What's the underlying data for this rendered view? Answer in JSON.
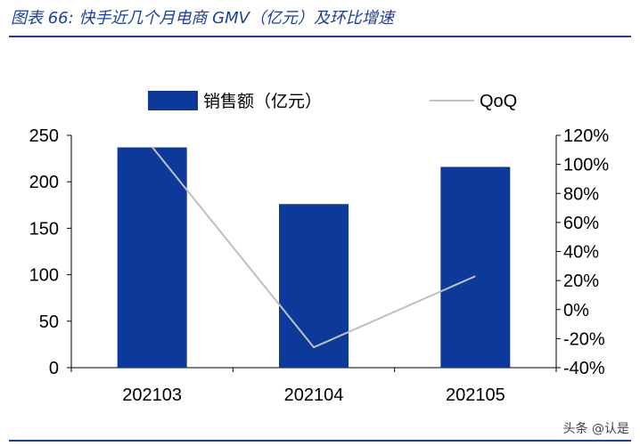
{
  "figure": {
    "title": "图表 66:  快手近几个月电商 GMV（亿元）及环比增速"
  },
  "watermark": "头条 @认是",
  "colors": {
    "bar": "#0d3a9a",
    "line": "#c0c0c0",
    "title": "#1a3f9c"
  },
  "chart_data": {
    "type": "bar+line",
    "categories": [
      "202103",
      "202104",
      "202105"
    ],
    "series": [
      {
        "name": "销售额（亿元）",
        "type": "bar",
        "axis": "left",
        "values": [
          237,
          176,
          216
        ]
      },
      {
        "name": "QoQ",
        "type": "line",
        "axis": "right",
        "values": [
          1.12,
          -0.26,
          0.23
        ]
      }
    ],
    "y_left": {
      "min": 0,
      "max": 250,
      "ticks": [
        "0",
        "50",
        "100",
        "150",
        "200",
        "250"
      ],
      "tick_values": [
        0,
        50,
        100,
        150,
        200,
        250
      ]
    },
    "y_right": {
      "min": -0.4,
      "max": 1.2,
      "ticks": [
        "-40%",
        "-20%",
        "0%",
        "20%",
        "40%",
        "60%",
        "80%",
        "100%",
        "120%"
      ],
      "tick_values": [
        -0.4,
        -0.2,
        0,
        0.2,
        0.4,
        0.6,
        0.8,
        1.0,
        1.2
      ]
    },
    "legend": {
      "position": "top",
      "bar_label": "销售额（亿元）",
      "line_label": "QoQ"
    }
  }
}
